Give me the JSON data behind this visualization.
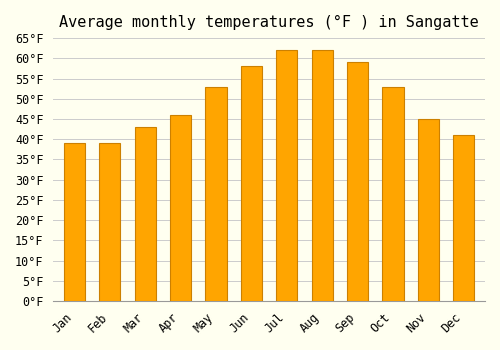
{
  "title": "Average monthly temperatures (°F ) in Sangatte",
  "months": [
    "Jan",
    "Feb",
    "Mar",
    "Apr",
    "May",
    "Jun",
    "Jul",
    "Aug",
    "Sep",
    "Oct",
    "Nov",
    "Dec"
  ],
  "values": [
    39,
    39,
    43,
    46,
    53,
    58,
    62,
    62,
    59,
    53,
    45,
    41
  ],
  "bar_color": "#FFA500",
  "bar_edge_color": "#CC8000",
  "background_color": "#FFFFF0",
  "grid_color": "#CCCCCC",
  "ylim": [
    0,
    65
  ],
  "yticks": [
    0,
    5,
    10,
    15,
    20,
    25,
    30,
    35,
    40,
    45,
    50,
    55,
    60,
    65
  ],
  "title_fontsize": 11,
  "tick_fontsize": 8.5,
  "figsize": [
    5.0,
    3.5
  ],
  "dpi": 100
}
